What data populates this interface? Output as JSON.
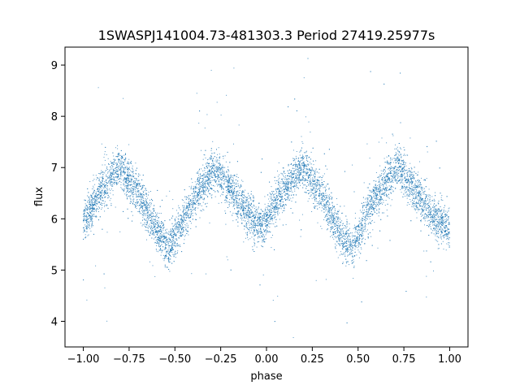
{
  "chart_data": {
    "type": "scatter",
    "title": "1SWASPJ141004.73-481303.3 Period 27419.25977s",
    "xlabel": "phase",
    "ylabel": "flux",
    "xlim": [
      -1.1,
      1.1
    ],
    "ylim": [
      3.5,
      9.35
    ],
    "xticks": [
      -1.0,
      -0.75,
      -0.5,
      -0.25,
      0.0,
      0.25,
      0.5,
      0.75,
      1.0
    ],
    "xtick_labels": [
      "−1.00",
      "−0.75",
      "−0.50",
      "−0.25",
      "0.00",
      "0.25",
      "0.50",
      "0.75",
      "1.00"
    ],
    "yticks": [
      4,
      5,
      6,
      7,
      8,
      9
    ],
    "ytick_labels": [
      "4",
      "5",
      "6",
      "7",
      "8",
      "9"
    ],
    "grid": false,
    "marker_color": "#1f77b4",
    "series": [
      {
        "x": [
          -1.0,
          -0.9,
          -0.8,
          -0.7,
          -0.6,
          -0.53,
          -0.45,
          -0.35,
          -0.28,
          -0.2,
          -0.1,
          -0.02,
          0.05,
          0.15,
          0.2,
          0.3,
          0.4,
          0.47,
          0.55,
          0.65,
          0.72,
          0.8,
          0.9,
          1.0
        ],
        "y": [
          5.9,
          6.6,
          7.0,
          6.5,
          5.8,
          5.4,
          6.0,
          6.7,
          6.95,
          6.6,
          6.1,
          5.8,
          6.3,
          6.8,
          7.0,
          6.5,
          5.7,
          5.4,
          6.1,
          6.7,
          7.0,
          6.6,
          6.1,
          5.8
        ]
      }
    ]
  }
}
